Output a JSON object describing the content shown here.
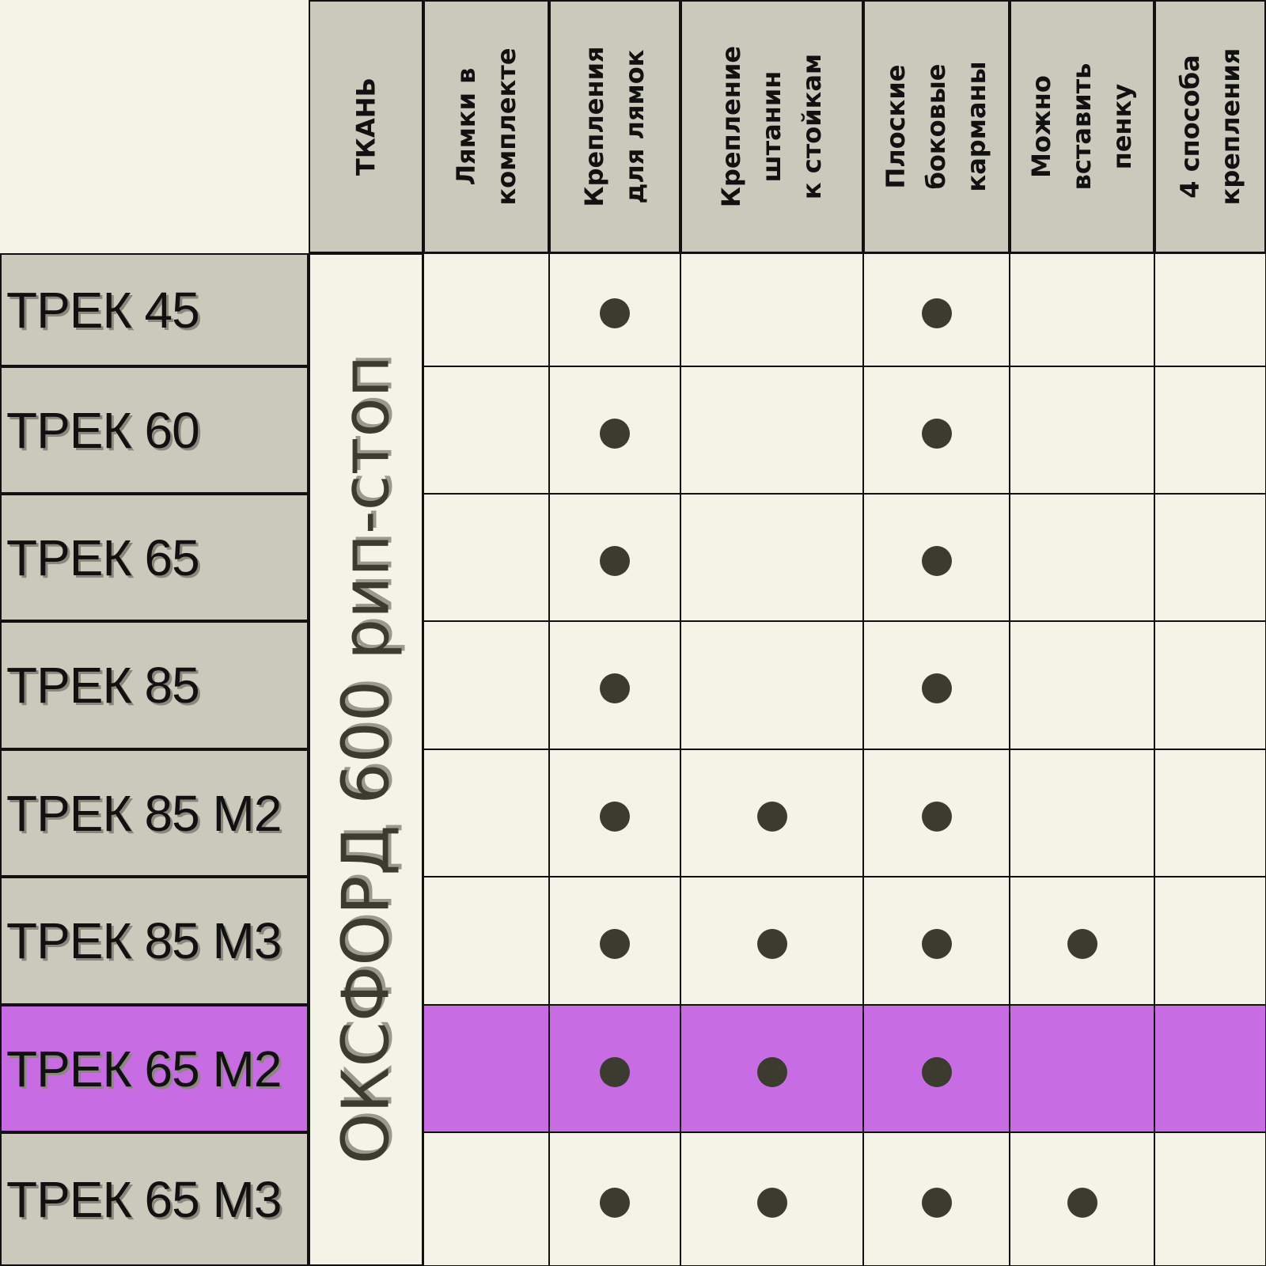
{
  "colors": {
    "background": "#f4f3e8",
    "header": "#cbc8bc",
    "highlight": "#c76ce3",
    "dot": "#3c3b30"
  },
  "table": {
    "fabric": "ОКСФОРД 600 рип-стоп",
    "columns": [
      "ТКАНЬ",
      "Лямки в\nкомплекте",
      "Крепления\nдля лямок",
      "Крепление\nштанин\nк стойкам",
      "Плоские\nбоковые\nкарманы",
      "Можно\nвставить\nпенку",
      "4 способа\nкрепления"
    ],
    "rows": [
      {
        "label": "ТРЕК 45",
        "highlight": false,
        "marks": [
          false,
          true,
          false,
          true,
          false,
          false
        ]
      },
      {
        "label": "ТРЕК 60",
        "highlight": false,
        "marks": [
          false,
          true,
          false,
          true,
          false,
          false
        ]
      },
      {
        "label": "ТРЕК 65",
        "highlight": false,
        "marks": [
          false,
          true,
          false,
          true,
          false,
          false
        ]
      },
      {
        "label": "ТРЕК 85",
        "highlight": false,
        "marks": [
          false,
          true,
          false,
          true,
          false,
          false
        ]
      },
      {
        "label": "ТРЕК 85 М2",
        "highlight": false,
        "marks": [
          false,
          true,
          true,
          true,
          false,
          false
        ]
      },
      {
        "label": "ТРЕК 85 М3",
        "highlight": false,
        "marks": [
          false,
          true,
          true,
          true,
          true,
          false
        ]
      },
      {
        "label": "ТРЕК 65 М2",
        "highlight": true,
        "marks": [
          false,
          true,
          true,
          true,
          false,
          false
        ]
      },
      {
        "label": "ТРЕК 65 М3",
        "highlight": false,
        "marks": [
          false,
          true,
          true,
          true,
          true,
          false
        ]
      }
    ]
  }
}
